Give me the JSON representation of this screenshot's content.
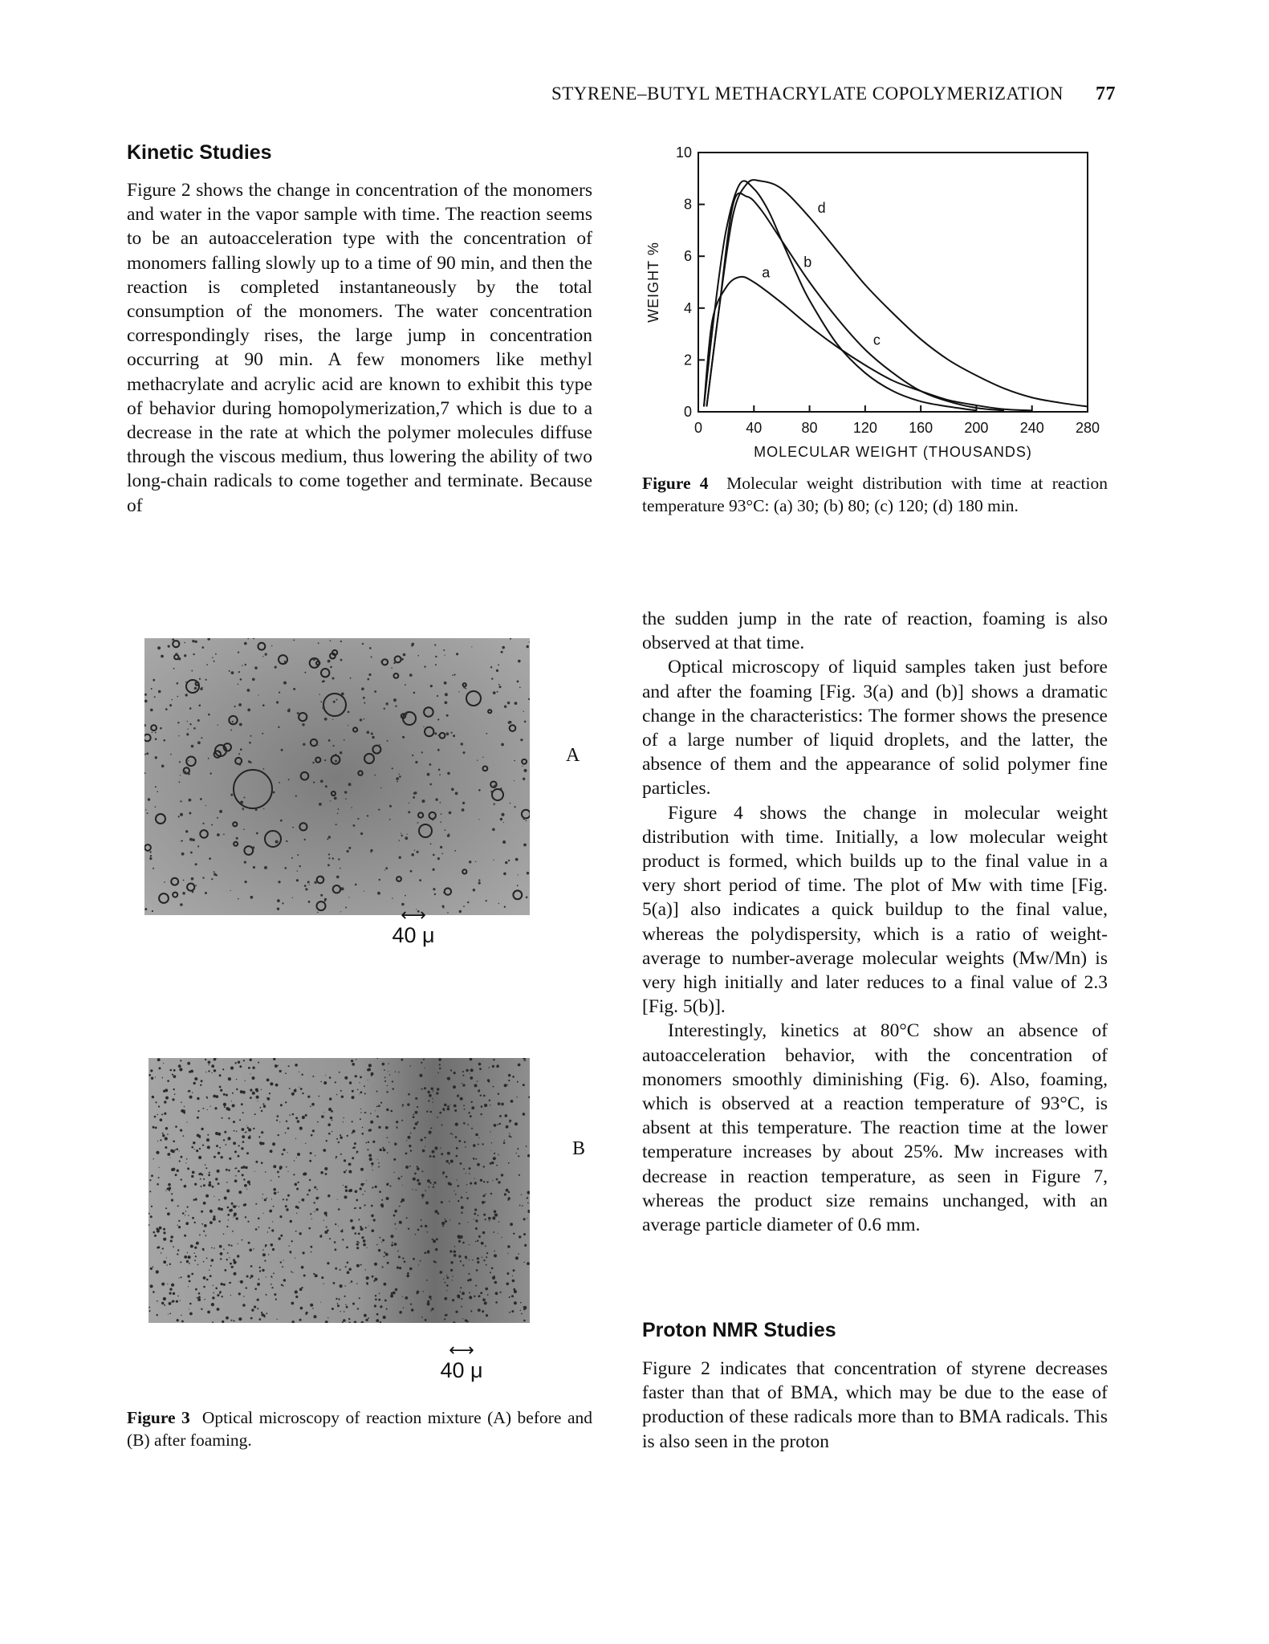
{
  "running_head": {
    "title": "STYRENE–BUTYL METHACRYLATE COPOLYMERIZATION",
    "page": "77"
  },
  "sections": {
    "kinetic": "Kinetic Studies",
    "nmr": "Proton NMR Studies"
  },
  "left_para_1": "Figure 2 shows the change in concentration of the monomers and water in the vapor sample with time. The reaction seems to be an autoacceleration type with the concentration of monomers falling slowly up to a time of 90 min, and then the reaction is completed instantaneously by the total consumption of the monomers. The water concentration correspondingly rises, the large jump in concentration occurring at 90 min. A few monomers like methyl methacrylate and acrylic acid are known to exhibit this type of behavior during homopolymerization,7 which is due to a decrease in the rate at which the polymer molecules diffuse through the viscous medium, thus lowering the ability of two long-chain radicals to come together and terminate. Because of",
  "right_paras": [
    "the sudden jump in the rate of reaction, foaming is also observed at that time.",
    "Optical microscopy of liquid samples taken just before and after the foaming [Fig. 3(a) and (b)] shows a dramatic change in the characteristics: The former shows the presence of a large number of liquid droplets, and the latter, the absence of them and the appearance of solid polymer fine particles.",
    "Figure 4 shows the change in molecular weight distribution with time. Initially, a low molecular weight product is formed, which builds up to the final value in a very short period of time. The plot of Mw with time [Fig. 5(a)] also indicates a quick buildup to the final value, whereas the polydispersity, which is a ratio of weight-average to number-average molecular weights (Mw/Mn) is very high initially and later reduces to a final value of 2.3 [Fig. 5(b)].",
    "Interestingly, kinetics at 80°C show an absence of autoacceleration behavior, with the concentration of monomers smoothly diminishing (Fig. 6). Also, foaming, which is observed at a reaction temperature of 93°C, is absent at this temperature. The reaction time at the lower temperature increases by about 25%. Mw increases with decrease in reaction temperature, as seen in Figure 7, whereas the product size remains unchanged, with an average particle diameter of 0.6 mm."
  ],
  "nmr_para": "Figure 2 indicates that concentration of styrene decreases faster than that of BMA, which may be due to the ease of production of these radicals more than to BMA radicals. This is also seen in the proton",
  "figure3": {
    "label": "Figure 3",
    "text": "Optical microscopy of reaction mixture (A) before and (B) after foaming.",
    "panel_a": "A",
    "panel_b": "B",
    "scale": "40 μ"
  },
  "figure4": {
    "label": "Figure 4",
    "text": "Molecular weight distribution with time at reaction temperature 93°C: (a) 30; (b) 80; (c) 120; (d) 180 min."
  },
  "chart_data": {
    "type": "line",
    "title": "",
    "xlabel": "MOLECULAR WEIGHT (THOUSANDS)",
    "ylabel": "WEIGHT %",
    "xlim": [
      0,
      280
    ],
    "ylim": [
      0,
      10
    ],
    "x_ticks": [
      0,
      40,
      80,
      120,
      160,
      200,
      240,
      280
    ],
    "y_ticks": [
      0,
      2,
      4,
      6,
      8,
      10
    ],
    "grid": false,
    "legend": "curve labels on lines",
    "series": [
      {
        "name": "a",
        "x": [
          4,
          10,
          20,
          30,
          40,
          60,
          80,
          100,
          120,
          140,
          160,
          180,
          200,
          220,
          240
        ],
        "y": [
          0.2,
          3.5,
          4.8,
          5.2,
          5.0,
          4.2,
          3.3,
          2.5,
          1.8,
          1.2,
          0.8,
          0.45,
          0.25,
          0.1,
          0.05
        ]
      },
      {
        "name": "b",
        "x": [
          4,
          12,
          20,
          30,
          40,
          50,
          60,
          70,
          80,
          100,
          120,
          140,
          160,
          180,
          200
        ],
        "y": [
          0.2,
          4.0,
          7.0,
          8.8,
          8.6,
          7.8,
          6.6,
          5.4,
          4.3,
          2.6,
          1.5,
          0.8,
          0.4,
          0.2,
          0.05
        ]
      },
      {
        "name": "c",
        "x": [
          6,
          15,
          25,
          35,
          45,
          60,
          80,
          100,
          120,
          140,
          160,
          180,
          200,
          220
        ],
        "y": [
          0.2,
          4.0,
          8.0,
          8.3,
          7.8,
          6.6,
          5.0,
          3.6,
          2.4,
          1.5,
          0.8,
          0.4,
          0.15,
          0.05
        ]
      },
      {
        "name": "d",
        "x": [
          6,
          15,
          25,
          35,
          45,
          60,
          80,
          100,
          120,
          140,
          160,
          180,
          200,
          220,
          240,
          260,
          280
        ],
        "y": [
          0.2,
          4.0,
          7.6,
          8.8,
          8.9,
          8.6,
          7.5,
          6.2,
          4.9,
          3.8,
          2.8,
          2.0,
          1.4,
          0.9,
          0.55,
          0.35,
          0.2
        ]
      }
    ]
  }
}
